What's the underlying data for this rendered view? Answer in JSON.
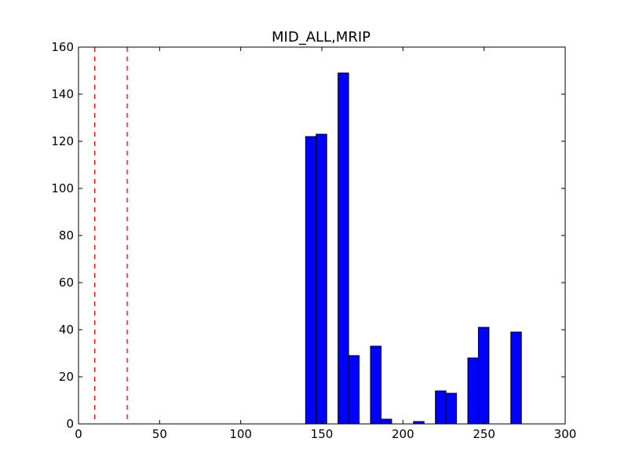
{
  "chart_data": {
    "type": "bar",
    "title": "MID_ALL,MRIP",
    "xlabel": "",
    "ylabel": "",
    "xlim": [
      0,
      300
    ],
    "ylim": [
      0,
      160
    ],
    "xticks": [
      0,
      50,
      100,
      150,
      200,
      250,
      300
    ],
    "yticks": [
      0,
      20,
      40,
      60,
      80,
      100,
      120,
      140,
      160
    ],
    "bar_width": 6.5,
    "bars": [
      {
        "x": 140,
        "value": 122
      },
      {
        "x": 146.5,
        "value": 123
      },
      {
        "x": 160,
        "value": 149
      },
      {
        "x": 166.5,
        "value": 29
      },
      {
        "x": 180,
        "value": 33
      },
      {
        "x": 186.5,
        "value": 2
      },
      {
        "x": 200,
        "value": 0
      },
      {
        "x": 206.5,
        "value": 1
      },
      {
        "x": 220,
        "value": 14
      },
      {
        "x": 226.5,
        "value": 13
      },
      {
        "x": 240,
        "value": 28
      },
      {
        "x": 246.5,
        "value": 41
      },
      {
        "x": 260,
        "value": 0
      },
      {
        "x": 266.5,
        "value": 39
      }
    ],
    "vlines": [
      {
        "x": 10,
        "style": "dashed",
        "color": "#ff0000"
      },
      {
        "x": 30,
        "style": "dashed",
        "color": "#ff0000"
      }
    ],
    "bar_color": "#0000ff",
    "edge_color": "#000000",
    "grid": false
  }
}
